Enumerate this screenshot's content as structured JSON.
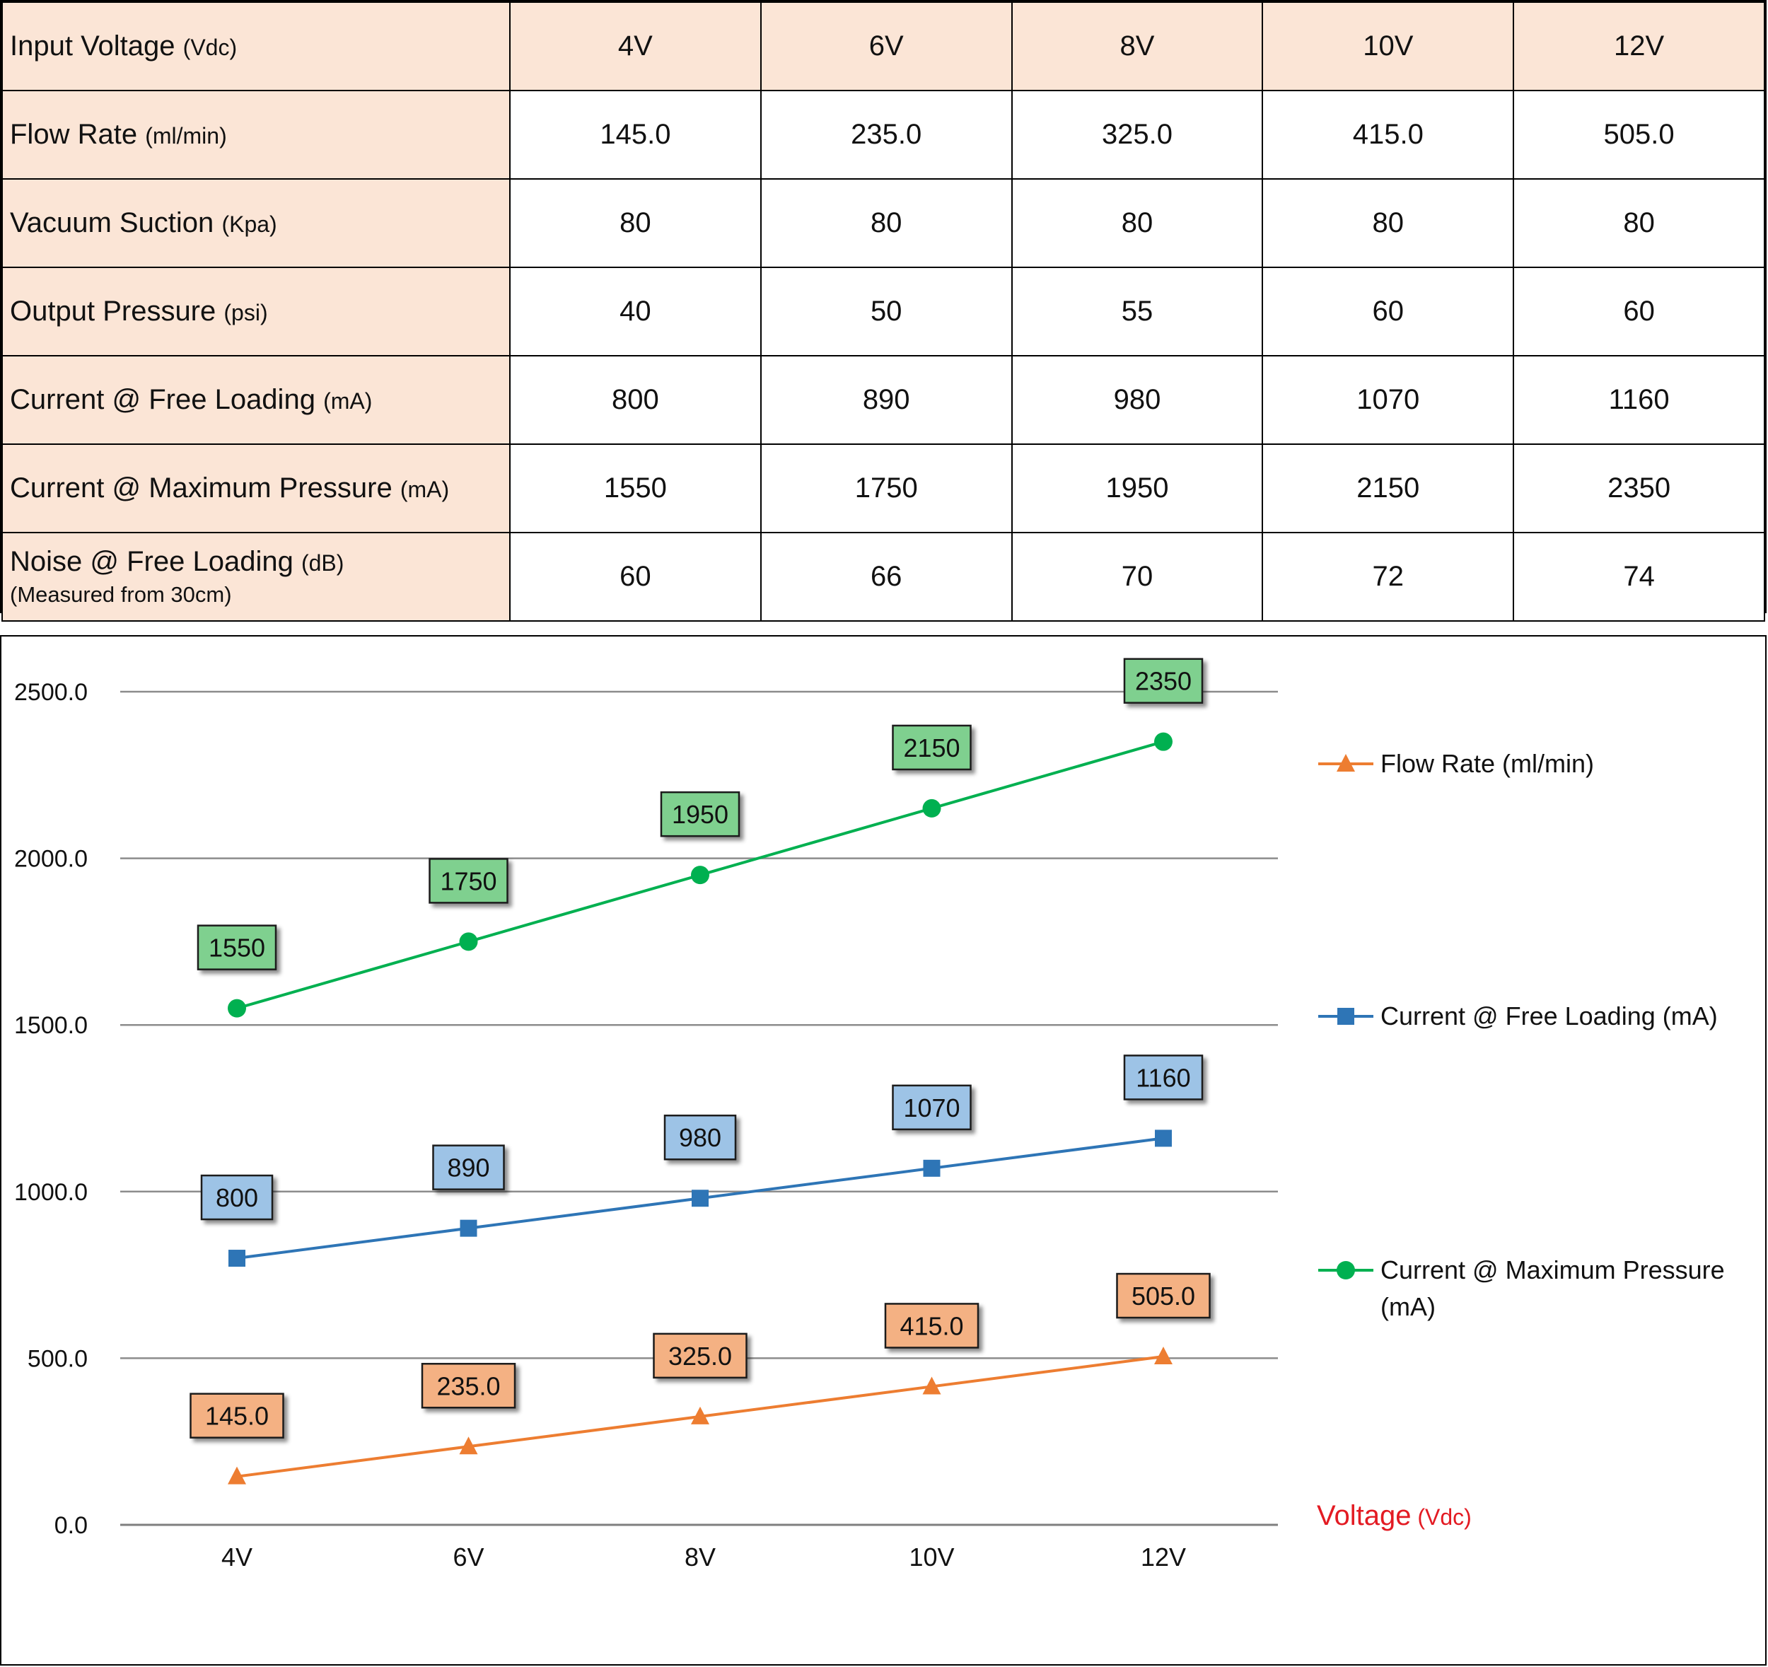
{
  "table": {
    "header": {
      "label": "Input Voltage",
      "unit": "(Vdc)",
      "values": [
        "4V",
        "6V",
        "8V",
        "10V",
        "12V"
      ]
    },
    "rows": [
      {
        "label": "Flow Rate",
        "unit": "(ml/min)",
        "values": [
          "145.0",
          "235.0",
          "325.0",
          "415.0",
          "505.0"
        ]
      },
      {
        "label": "Vacuum Suction",
        "unit": "(Kpa)",
        "values": [
          "80",
          "80",
          "80",
          "80",
          "80"
        ]
      },
      {
        "label": "Output Pressure",
        "unit": "(psi)",
        "values": [
          "40",
          "50",
          "55",
          "60",
          "60"
        ]
      },
      {
        "label": "Current @ Free Loading",
        "unit": "(mA)",
        "values": [
          "800",
          "890",
          "980",
          "1070",
          "1160"
        ]
      },
      {
        "label": "Current @ Maximum Pressure",
        "unit": "(mA)",
        "values": [
          "1550",
          "1750",
          "1950",
          "2150",
          "2350"
        ]
      },
      {
        "label": "Noise @ Free Loading",
        "unit": "(dB)",
        "note": "(Measured from 30cm)",
        "values": [
          "60",
          "66",
          "70",
          "72",
          "74"
        ]
      }
    ]
  },
  "chart_data": {
    "type": "line",
    "categories": [
      "4V",
      "6V",
      "8V",
      "10V",
      "12V"
    ],
    "ylim": [
      0,
      2500
    ],
    "yticks": [
      "0.0",
      "500.0",
      "1000.0",
      "1500.0",
      "2000.0",
      "2500.0"
    ],
    "grid": true,
    "legend_position": "right",
    "xlabel": "Voltage",
    "xlabel_unit": "(Vdc)",
    "xlabel_color": "#e31b23",
    "series": [
      {
        "name": "Flow Rate (ml/min)",
        "marker": "triangle",
        "color": "#ed7d31",
        "label_fill": "#f4b183",
        "values": [
          145.0,
          235.0,
          325.0,
          415.0,
          505.0
        ],
        "labels": [
          "145.0",
          "235.0",
          "325.0",
          "415.0",
          "505.0"
        ]
      },
      {
        "name": "Current @ Free Loading (mA)",
        "marker": "square",
        "color": "#2e75b6",
        "label_fill": "#9dc3e6",
        "values": [
          800,
          890,
          980,
          1070,
          1160
        ],
        "labels": [
          "800",
          "890",
          "980",
          "1070",
          "1160"
        ]
      },
      {
        "name": "Current @ Maximum Pressure (mA)",
        "marker": "circle",
        "color": "#00b050",
        "label_fill": "#7fd08f",
        "values": [
          1550,
          1750,
          1950,
          2150,
          2350
        ],
        "labels": [
          "1550",
          "1750",
          "1950",
          "2150",
          "2350"
        ]
      }
    ]
  }
}
